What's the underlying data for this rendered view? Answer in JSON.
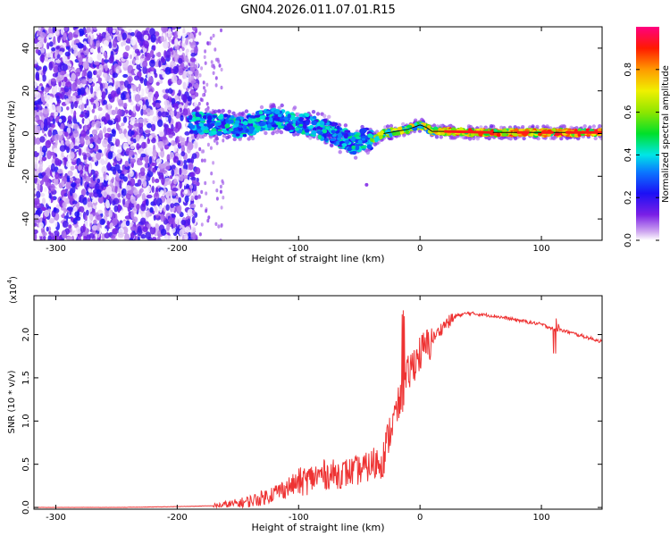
{
  "title": "GN04.2026.011.07.01.R15",
  "chart_data": [
    {
      "type": "heatmap",
      "xlabel": "Height of straight line (km)",
      "ylabel": "Frequency (Hz)",
      "xlim": [
        -318,
        150
      ],
      "ylim": [
        -50,
        50
      ],
      "xticks": [
        -300,
        -200,
        -100,
        0,
        100
      ],
      "yticks": [
        -40,
        -20,
        0,
        20,
        40
      ],
      "xtick_labels": [
        "-300",
        "-200",
        "-100",
        "0",
        "100"
      ],
      "ytick_labels": [
        "-40",
        "-20",
        "0",
        "20",
        "40"
      ],
      "colorbar": {
        "label": "Normalized spectral amplitude",
        "range": [
          0.0,
          1.0
        ],
        "ticks": [
          0.0,
          0.2,
          0.4,
          0.6,
          0.8
        ],
        "tick_labels": [
          "0.0",
          "0.2",
          "0.4",
          "0.6",
          "0.8"
        ]
      },
      "ridge_trace": {
        "x": [
          -190,
          -180,
          -170,
          -160,
          -150,
          -140,
          -130,
          -120,
          -110,
          -100,
          -90,
          -80,
          -70,
          -65,
          -60,
          -55,
          -50,
          -45,
          -40,
          -35,
          -30,
          -20,
          -10,
          -5,
          0,
          5,
          10,
          20,
          40,
          80,
          150
        ],
        "y": [
          5,
          5,
          4,
          4,
          3,
          4,
          6,
          7,
          6,
          5,
          4,
          2,
          0,
          -2,
          -3,
          -5,
          -4,
          -2,
          -3,
          -2,
          0,
          1,
          2,
          3,
          4,
          3,
          1,
          1,
          0.5,
          0.5,
          0.5
        ]
      }
    },
    {
      "type": "line",
      "xlabel": "Height of straight line (km)",
      "ylabel": "SNR (10 * v/v)",
      "y_multiplier_label": "(x10",
      "y_multiplier_exp": "4",
      "xlim": [
        -318,
        150
      ],
      "ylim": [
        -0.02,
        2.45
      ],
      "xticks": [
        -300,
        -200,
        -100,
        0,
        100
      ],
      "yticks": [
        0.0,
        0.5,
        1.0,
        1.5,
        2.0
      ],
      "xtick_labels": [
        "-300",
        "-200",
        "-100",
        "0",
        "100"
      ],
      "ytick_labels": [
        "0.0",
        "0.5",
        "1.0",
        "1.5",
        "2.0"
      ],
      "series": [
        {
          "name": "SNR",
          "color": "#ee3333",
          "x": [
            -318,
            -250,
            -200,
            -170,
            -150,
            -140,
            -130,
            -120,
            -110,
            -100,
            -90,
            -80,
            -70,
            -60,
            -50,
            -40,
            -30,
            -25,
            -20,
            -15,
            -10,
            -5,
            0,
            10,
            20,
            30,
            40,
            60,
            80,
            100,
            110,
            120,
            140,
            150
          ],
          "y": [
            0.0,
            0.0,
            0.01,
            0.02,
            0.05,
            0.08,
            0.12,
            0.18,
            0.24,
            0.3,
            0.35,
            0.4,
            0.4,
            0.42,
            0.45,
            0.5,
            0.6,
            0.9,
            1.1,
            1.3,
            1.55,
            1.7,
            1.8,
            1.95,
            2.12,
            2.22,
            2.25,
            2.22,
            2.17,
            2.12,
            2.07,
            2.04,
            1.96,
            1.92
          ]
        }
      ]
    }
  ]
}
